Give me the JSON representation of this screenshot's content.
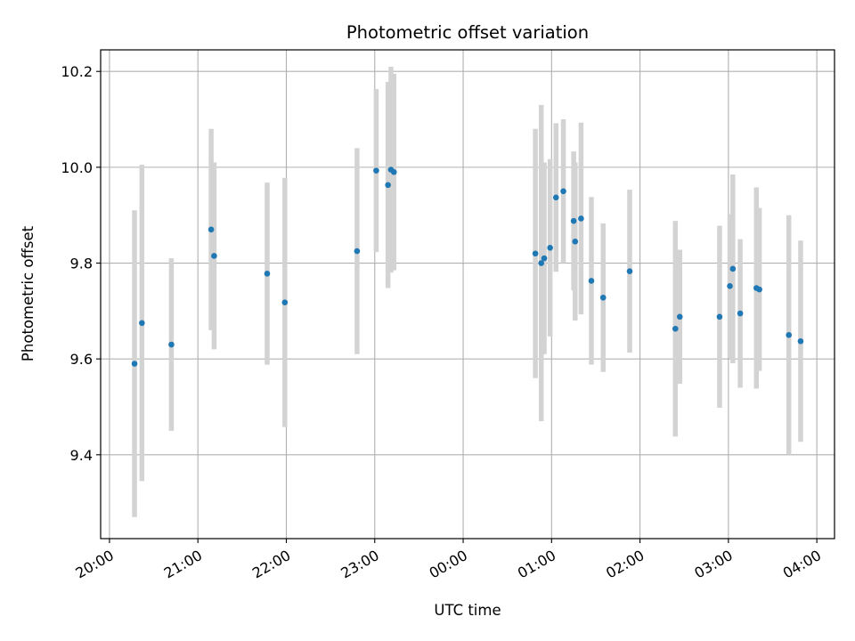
{
  "chart_data": {
    "type": "scatter",
    "title": "Photometric offset variation",
    "xlabel": "UTC time",
    "ylabel": "Photometric offset",
    "grid": true,
    "x_unit": "UTC time (HH:MM, evening to next morning)",
    "xlim": [
      "19:54",
      "04:12"
    ],
    "ylim": [
      9.225,
      10.245
    ],
    "x_ticks": [
      "20:00",
      "21:00",
      "22:00",
      "23:00",
      "00:00",
      "01:00",
      "02:00",
      "03:00",
      "04:00"
    ],
    "y_ticks": [
      "9.4",
      "9.6",
      "9.8",
      "10.0",
      "10.2"
    ],
    "series": [
      {
        "point_color": "#1f77b4",
        "errorbar_color": "#d3d3d3",
        "points": [
          {
            "x": "20:17",
            "y": 9.59,
            "err": 0.32
          },
          {
            "x": "20:22",
            "y": 9.675,
            "err": 0.33
          },
          {
            "x": "20:42",
            "y": 9.63,
            "err": 0.18
          },
          {
            "x": "21:09",
            "y": 9.87,
            "err": 0.21
          },
          {
            "x": "21:11",
            "y": 9.815,
            "err": 0.195
          },
          {
            "x": "21:47",
            "y": 9.778,
            "err": 0.19
          },
          {
            "x": "21:59",
            "y": 9.718,
            "err": 0.26
          },
          {
            "x": "22:48",
            "y": 9.825,
            "err": 0.215
          },
          {
            "x": "23:01",
            "y": 9.993,
            "err": 0.17
          },
          {
            "x": "23:09",
            "y": 9.963,
            "err": 0.215
          },
          {
            "x": "23:11",
            "y": 9.995,
            "err": 0.215
          },
          {
            "x": "23:13",
            "y": 9.99,
            "err": 0.205
          },
          {
            "x": "00:49",
            "y": 9.82,
            "err": 0.26
          },
          {
            "x": "00:53",
            "y": 9.8,
            "err": 0.33
          },
          {
            "x": "00:55",
            "y": 9.81,
            "err": 0.2
          },
          {
            "x": "00:59",
            "y": 9.832,
            "err": 0.185
          },
          {
            "x": "01:03",
            "y": 9.937,
            "err": 0.155
          },
          {
            "x": "01:08",
            "y": 9.95,
            "err": 0.15
          },
          {
            "x": "01:15",
            "y": 9.888,
            "err": 0.145
          },
          {
            "x": "01:16",
            "y": 9.845,
            "err": 0.165
          },
          {
            "x": "01:20",
            "y": 9.893,
            "err": 0.2
          },
          {
            "x": "01:27",
            "y": 9.763,
            "err": 0.175
          },
          {
            "x": "01:35",
            "y": 9.728,
            "err": 0.155
          },
          {
            "x": "01:53",
            "y": 9.783,
            "err": 0.17
          },
          {
            "x": "02:24",
            "y": 9.663,
            "err": 0.225
          },
          {
            "x": "02:27",
            "y": 9.688,
            "err": 0.14
          },
          {
            "x": "02:54",
            "y": 9.688,
            "err": 0.19
          },
          {
            "x": "03:01",
            "y": 9.752,
            "err": 0.15
          },
          {
            "x": "03:03",
            "y": 9.788,
            "err": 0.197
          },
          {
            "x": "03:08",
            "y": 9.695,
            "err": 0.155
          },
          {
            "x": "03:19",
            "y": 9.748,
            "err": 0.21
          },
          {
            "x": "03:21",
            "y": 9.745,
            "err": 0.17
          },
          {
            "x": "03:41",
            "y": 9.65,
            "err": 0.25
          },
          {
            "x": "03:49",
            "y": 9.637,
            "err": 0.21
          }
        ]
      }
    ]
  }
}
